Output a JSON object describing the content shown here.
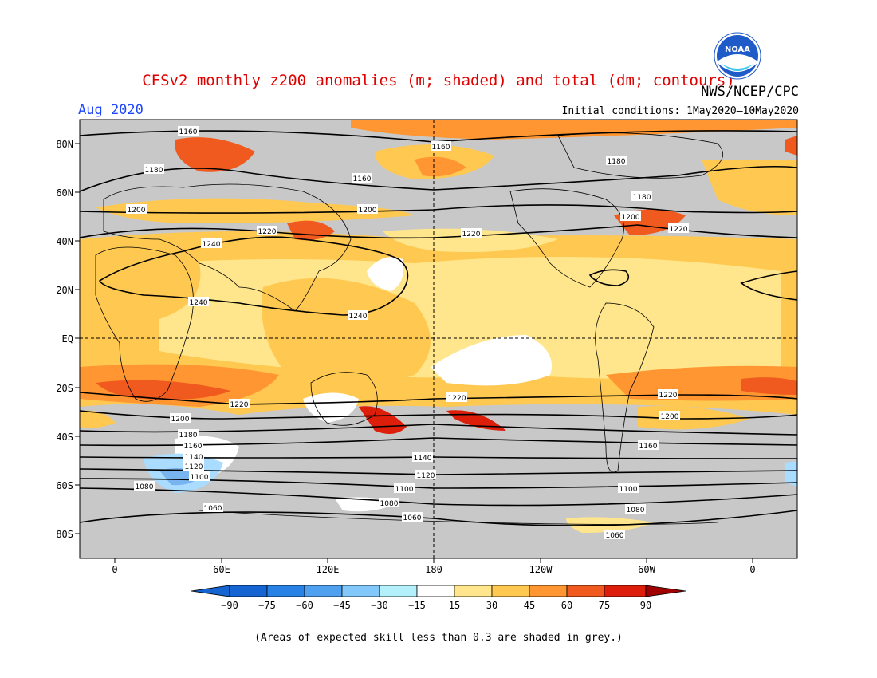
{
  "header": {
    "title": "CFSv2 monthly z200 anomalies (m; shaded) and total (dm; contours)",
    "agency": "NWS/NCEP/CPC",
    "month": "Aug 2020",
    "initial_conditions": "Initial conditions:  1May2020—10May2020",
    "logo_text": "NOAA"
  },
  "map": {
    "lat_labels": [
      "80N",
      "60N",
      "40N",
      "20N",
      "EQ",
      "20S",
      "40S",
      "60S",
      "80S"
    ],
    "lon_labels": [
      "0",
      "60E",
      "120E",
      "180",
      "120W",
      "60W",
      "0"
    ],
    "contour_labels": [
      "1160",
      "1160",
      "1160",
      "1180",
      "1180",
      "1180",
      "1200",
      "1200",
      "1200",
      "1220",
      "1220",
      "1220",
      "1240",
      "1240",
      "1240",
      "1220",
      "1220",
      "1220",
      "1200",
      "1200",
      "1180",
      "1160",
      "1160",
      "1140",
      "1140",
      "1120",
      "1120",
      "1100",
      "1100",
      "1100",
      "1080",
      "1080",
      "1080",
      "1060",
      "1060",
      "1060"
    ],
    "colors": {
      "grey": "#c8c8c8",
      "white": "#ffffff",
      "pale_yellow": "#ffe68c",
      "yellow_orange": "#ffc850",
      "orange": "#ff9632",
      "dark_orange": "#f05a1e",
      "red": "#dc1e0a",
      "dark_red": "#a00000",
      "light_blue": "#aadcff",
      "mid_blue": "#78b4f0"
    }
  },
  "legend": {
    "tick_labels": [
      "−90",
      "−75",
      "−60",
      "−45",
      "−30",
      "−15",
      "15",
      "30",
      "45",
      "60",
      "75",
      "90"
    ],
    "colors": [
      "#1464d2",
      "#2882e6",
      "#50a0f0",
      "#82c8fa",
      "#b4f0fa",
      "#ffffff",
      "#ffe68c",
      "#ffc850",
      "#ff9632",
      "#f05a1e",
      "#dc1e0a"
    ],
    "low_arrow_color": "#1464d2",
    "high_arrow_color": "#a00000"
  },
  "footnote": "(Areas of expected skill less than 0.3 are shaded in grey.)"
}
